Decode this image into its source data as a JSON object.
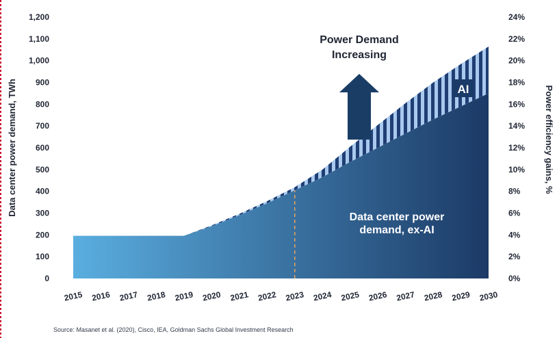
{
  "chart_data": {
    "type": "area",
    "x": [
      2015,
      2016,
      2017,
      2018,
      2019,
      2020,
      2021,
      2022,
      2023,
      2024,
      2025,
      2026,
      2027,
      2028,
      2029,
      2030
    ],
    "series": [
      {
        "name": "Data center power demand, ex-AI",
        "values": [
          196,
          196,
          196,
          196,
          196,
          240,
          290,
          345,
          405,
          465,
          535,
          600,
          665,
          730,
          790,
          850
        ]
      },
      {
        "name": "AI",
        "values": [
          0,
          0,
          0,
          0,
          0,
          4,
          7,
          10,
          14,
          35,
          70,
          105,
          140,
          170,
          195,
          215
        ]
      }
    ],
    "ylabel": "Data center power demand, TWh",
    "y2label": "Power efficiency gains, %",
    "ylim": [
      0,
      1200
    ],
    "yticks": [
      "0",
      "100",
      "200",
      "300",
      "400",
      "500",
      "600",
      "700",
      "800",
      "900",
      "1,000",
      "1,100",
      "1,200"
    ],
    "y2lim": [
      0,
      24
    ],
    "y2ticks": [
      "0%",
      "2%",
      "4%",
      "6%",
      "8%",
      "10%",
      "12%",
      "14%",
      "16%",
      "18%",
      "20%",
      "22%",
      "24%"
    ],
    "xticks": [
      "2015",
      "2016",
      "2017",
      "2018",
      "2019",
      "2020",
      "2021",
      "2022",
      "2023",
      "2024",
      "2025",
      "2026",
      "2027",
      "2028",
      "2029",
      "2030"
    ],
    "annotations": {
      "arrow_text_line1": "Power Demand",
      "arrow_text_line2": "Increasing",
      "ai_label": "AI",
      "exai_label_line1": "Data center power",
      "exai_label_line2": "demand, ex-AI",
      "marker_year": 2023
    },
    "legend": "none",
    "grid": false
  },
  "colors": {
    "area_light": "#5aaee0",
    "area_dark": "#1c3a66",
    "ai_stripe_light": "#a9c9ee",
    "ai_stripe_dark": "#1f3f74",
    "arrow": "#1a3d66",
    "ai_box": "#1a3a68",
    "marker_line": "#e0a060",
    "text": "#1f2533"
  },
  "source": "Source: Masanet et al. (2020), Cisco, IEA, Goldman Sachs Global Investment Research"
}
